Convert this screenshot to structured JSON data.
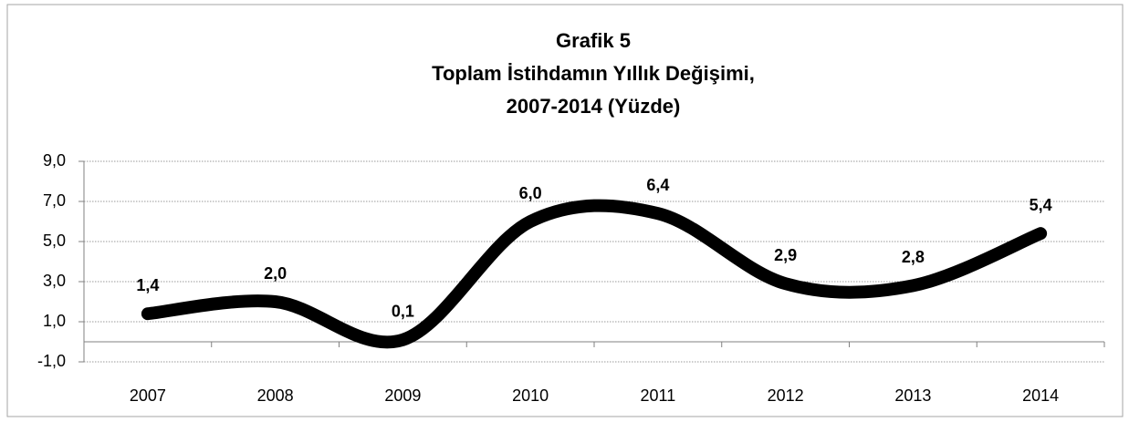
{
  "chart_data": {
    "type": "line",
    "title": [
      "Grafik 5",
      "Toplam İstihdamın Yıllık Değişimi,",
      "2007-2014 (Yüzde)"
    ],
    "categories": [
      "2007",
      "2008",
      "2009",
      "2010",
      "2011",
      "2012",
      "2013",
      "2014"
    ],
    "values": [
      1.4,
      2.0,
      0.1,
      6.0,
      6.4,
      2.9,
      2.8,
      5.4
    ],
    "value_labels": [
      "1,4",
      "2,0",
      "0,1",
      "6,0",
      "6,4",
      "2,9",
      "2,8",
      "5,4"
    ],
    "color": "#000000",
    "smooth": true,
    "ylim": [
      -1,
      9
    ],
    "yticks": [
      {
        "value": -1,
        "label": "-1,0"
      },
      {
        "value": 1,
        "label": "1,0"
      },
      {
        "value": 3,
        "label": "3,0"
      },
      {
        "value": 5,
        "label": "5,0"
      },
      {
        "value": 7,
        "label": "7,0"
      },
      {
        "value": 9,
        "label": "9,0"
      }
    ],
    "grid": true
  }
}
